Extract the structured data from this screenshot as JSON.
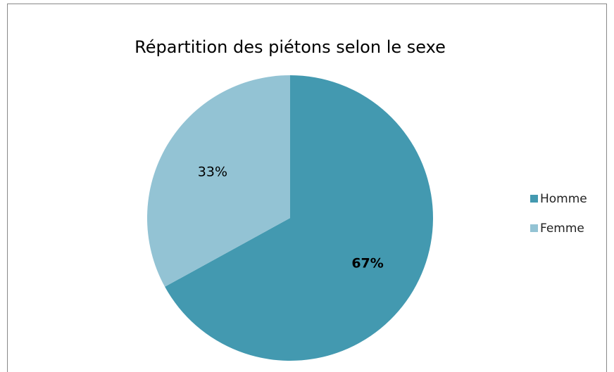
{
  "chart_data": {
    "type": "pie",
    "title": "Répartition des piétons selon le sexe",
    "categories": [
      "Homme",
      "Femme"
    ],
    "values": [
      67,
      33
    ],
    "value_labels": [
      "67%",
      "33%"
    ],
    "colors": [
      "#4399b0",
      "#93c3d4"
    ],
    "legend": "right"
  }
}
